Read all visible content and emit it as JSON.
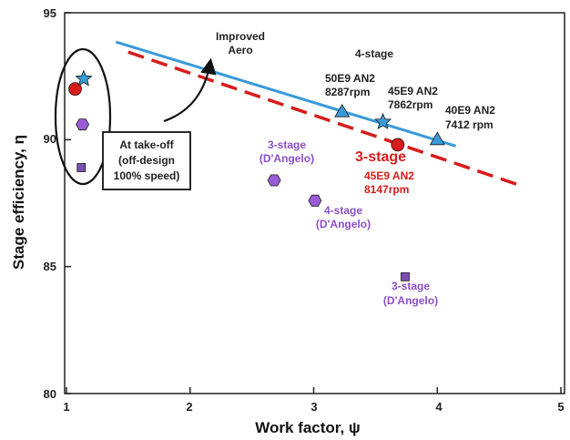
{
  "chart_data": {
    "type": "scatter",
    "xlabel": "Work factor, ψ",
    "ylabel": "Stage efficiency, η",
    "xlim": [
      1,
      5
    ],
    "ylim": [
      80,
      95
    ],
    "x_ticks": [
      "1",
      "2",
      "3",
      "4",
      "5"
    ],
    "y_ticks": [
      "80",
      "85",
      "90",
      "95"
    ],
    "grid": false,
    "lines": [
      {
        "style": "solid",
        "color": "#3a9ad9",
        "x": [
          1.4,
          4.15
        ],
        "y": [
          93.85,
          89.75
        ]
      },
      {
        "style": "dashed",
        "color": "#d81b1b",
        "x": [
          1.5,
          4.7
        ],
        "y": [
          93.45,
          88.15
        ]
      }
    ],
    "points": [
      {
        "x": 1.07,
        "y": 92.0,
        "marker": "circle",
        "color": "#d81b1b"
      },
      {
        "x": 1.14,
        "y": 92.4,
        "marker": "star",
        "color": "#3a9ad9"
      },
      {
        "x": 1.13,
        "y": 90.6,
        "marker": "hexagon",
        "color": "#9a5cd6"
      },
      {
        "x": 1.12,
        "y": 88.9,
        "marker": "square",
        "color": "#7a4fb0"
      },
      {
        "x": 3.23,
        "y": 91.1,
        "marker": "triangle",
        "color": "#3a9ad9"
      },
      {
        "x": 3.56,
        "y": 90.7,
        "marker": "star",
        "color": "#3a9ad9"
      },
      {
        "x": 4.0,
        "y": 90.0,
        "marker": "triangle",
        "color": "#3a9ad9"
      },
      {
        "x": 3.68,
        "y": 89.8,
        "marker": "circle",
        "color": "#d81b1b"
      },
      {
        "x": 2.68,
        "y": 88.4,
        "marker": "hexagon",
        "color": "#9a5cd6"
      },
      {
        "x": 3.01,
        "y": 87.6,
        "marker": "hexagon",
        "color": "#9a5cd6"
      },
      {
        "x": 3.74,
        "y": 84.6,
        "marker": "square",
        "color": "#7a4fb0"
      }
    ],
    "annotations": {
      "improved_aero": [
        "Improved",
        "Aero"
      ],
      "four_stage": "4-stage",
      "p50e9": [
        "50E9 AN2",
        "8287rpm"
      ],
      "p45e9": [
        "45E9 AN2",
        "7862rpm"
      ],
      "p40e9": [
        "40E9 AN2",
        "7412 rpm"
      ],
      "three_stage_red": "3-stage",
      "p45e9_red": [
        "45E9 AN2",
        "8147rpm"
      ],
      "dangelo_3_hex": [
        "3-stage",
        "(D'Angelo)"
      ],
      "dangelo_4_hex": [
        "4-stage",
        "(D'Angelo)"
      ],
      "dangelo_3_sq": [
        "3-stage",
        "(D'Angelo)"
      ],
      "takeoff": [
        "At take-off",
        "(off-design",
        "100% speed)"
      ]
    }
  }
}
